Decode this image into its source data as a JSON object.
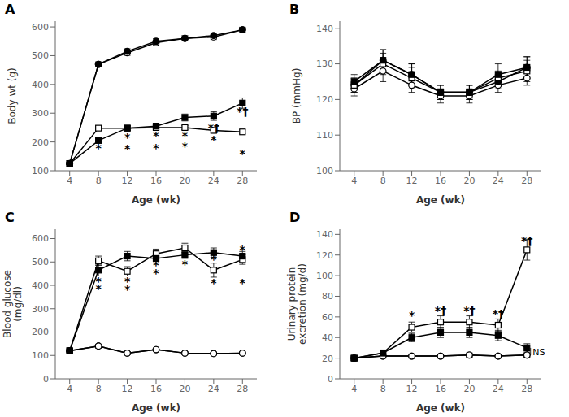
{
  "chart_data": [
    {
      "type": "line",
      "title": "A",
      "x_label": "Age (wk)",
      "y_label": "Body wt (g)",
      "x": [
        4,
        8,
        12,
        16,
        20,
        24,
        28
      ],
      "xlim": [
        2,
        30
      ],
      "xticks": [
        4,
        8,
        12,
        16,
        20,
        24,
        28
      ],
      "ylim": [
        100,
        620
      ],
      "yticks": [
        100,
        200,
        300,
        400,
        500,
        600
      ],
      "grid": false,
      "series": [
        {
          "color": "black",
          "marker": "open_circle",
          "values": [
            125,
            470,
            510,
            545,
            560,
            565,
            590
          ],
          "yerr": [
            3,
            8,
            9,
            9,
            9,
            9,
            9
          ]
        },
        {
          "color": "black",
          "marker": "circle",
          "values": [
            125,
            470,
            515,
            550,
            560,
            570,
            590
          ],
          "yerr": [
            3,
            8,
            9,
            9,
            9,
            9,
            9
          ]
        },
        {
          "color": "black",
          "marker": "open_square",
          "values": [
            125,
            248,
            248,
            250,
            250,
            240,
            235
          ],
          "yerr": [
            3,
            7,
            7,
            7,
            7,
            7,
            7
          ]
        },
        {
          "color": "black",
          "marker": "square",
          "values": [
            125,
            205,
            248,
            255,
            285,
            290,
            335
          ],
          "yerr": [
            3,
            7,
            8,
            10,
            12,
            15,
            18
          ]
        }
      ],
      "annotations": [
        {
          "x": 8,
          "y": 182,
          "text": "*"
        },
        {
          "x": 12,
          "y": 220,
          "text": "*"
        },
        {
          "x": 12,
          "y": 178,
          "text": "*"
        },
        {
          "x": 16,
          "y": 225,
          "text": "*"
        },
        {
          "x": 16,
          "y": 183,
          "text": "*"
        },
        {
          "x": 20,
          "y": 225,
          "text": "*"
        },
        {
          "x": 20,
          "y": 188,
          "text": "*"
        },
        {
          "x": 24,
          "y": 252,
          "text": "*†"
        },
        {
          "x": 24,
          "y": 210,
          "text": "*"
        },
        {
          "x": 28,
          "y": 310,
          "text": "*†"
        },
        {
          "x": 28,
          "y": 162,
          "text": "*"
        }
      ]
    },
    {
      "type": "line",
      "title": "B",
      "x_label": "Age (wk)",
      "y_label": "BP (mmHg)",
      "x": [
        4,
        8,
        12,
        16,
        20,
        24,
        28
      ],
      "xlim": [
        2,
        30
      ],
      "xticks": [
        4,
        8,
        12,
        16,
        20,
        24,
        28
      ],
      "ylim": [
        100,
        142
      ],
      "yticks": [
        100,
        110,
        120,
        130,
        140
      ],
      "grid": false,
      "series": [
        {
          "color": "black",
          "marker": "open_circle",
          "values": [
            123,
            128,
            124,
            121,
            121,
            124,
            126
          ],
          "yerr": [
            2,
            3,
            2,
            2,
            2,
            2,
            2
          ]
        },
        {
          "color": "black",
          "marker": "circle",
          "values": [
            124,
            131,
            127,
            122,
            122,
            125,
            129
          ],
          "yerr": [
            2,
            3,
            3,
            2,
            2,
            2,
            3
          ]
        },
        {
          "color": "black",
          "marker": "open_square",
          "values": [
            124,
            130,
            126,
            122,
            122,
            126,
            128
          ],
          "yerr": [
            2,
            3,
            3,
            2,
            2,
            2,
            3
          ]
        },
        {
          "color": "black",
          "marker": "square",
          "values": [
            125,
            131,
            127,
            122,
            122,
            127,
            129
          ],
          "yerr": [
            2,
            3,
            3,
            2,
            2,
            3,
            3
          ]
        }
      ]
    },
    {
      "type": "line",
      "title": "C",
      "x_label": "Age (wk)",
      "y_label": "Blood glucose\n(mg/dl)",
      "x": [
        4,
        8,
        12,
        16,
        20,
        24,
        28
      ],
      "xlim": [
        2,
        30
      ],
      "xticks": [
        4,
        8,
        12,
        16,
        20,
        24,
        28
      ],
      "ylim": [
        0,
        640
      ],
      "yticks": [
        0,
        100,
        200,
        300,
        400,
        500,
        600
      ],
      "grid": false,
      "series": [
        {
          "color": "black",
          "marker": "circle",
          "values": [
            120,
            140,
            110,
            125,
            110,
            108,
            110
          ],
          "yerr": [
            5,
            8,
            5,
            5,
            5,
            5,
            5
          ]
        },
        {
          "color": "black",
          "marker": "open_circle",
          "values": [
            120,
            140,
            110,
            125,
            110,
            108,
            110
          ],
          "yerr": [
            5,
            8,
            5,
            5,
            5,
            5,
            5
          ]
        },
        {
          "color": "black",
          "marker": "open_square",
          "values": [
            120,
            505,
            460,
            535,
            560,
            465,
            510
          ],
          "yerr": [
            5,
            20,
            20,
            20,
            20,
            30,
            20
          ]
        },
        {
          "color": "black",
          "marker": "square",
          "values": [
            120,
            465,
            525,
            515,
            530,
            540,
            525
          ],
          "yerr": [
            5,
            25,
            20,
            20,
            15,
            20,
            20
          ]
        }
      ],
      "annotations": [
        {
          "x": 8,
          "y": 420,
          "text": "*"
        },
        {
          "x": 8,
          "y": 390,
          "text": "*"
        },
        {
          "x": 12,
          "y": 420,
          "text": "*"
        },
        {
          "x": 12,
          "y": 385,
          "text": "*"
        },
        {
          "x": 16,
          "y": 490,
          "text": "*"
        },
        {
          "x": 16,
          "y": 455,
          "text": "*"
        },
        {
          "x": 20,
          "y": 535,
          "text": "*"
        },
        {
          "x": 20,
          "y": 495,
          "text": "*"
        },
        {
          "x": 24,
          "y": 515,
          "text": "*"
        },
        {
          "x": 24,
          "y": 415,
          "text": "*"
        },
        {
          "x": 28,
          "y": 555,
          "text": "*"
        },
        {
          "x": 28,
          "y": 415,
          "text": "*"
        }
      ]
    },
    {
      "type": "line",
      "title": "D",
      "x_label": "Age (wk)",
      "y_label": "Urinary protein\nexcretion (mg/d)",
      "x": [
        4,
        8,
        12,
        16,
        20,
        24,
        28
      ],
      "xlim": [
        2,
        30
      ],
      "xticks": [
        4,
        8,
        12,
        16,
        20,
        24,
        28
      ],
      "ylim": [
        0,
        145
      ],
      "yticks": [
        0,
        20,
        40,
        60,
        80,
        100,
        120,
        140
      ],
      "grid": false,
      "series": [
        {
          "color": "black",
          "marker": "circle",
          "values": [
            20,
            22,
            22,
            22,
            23,
            22,
            23
          ],
          "yerr": [
            2,
            2,
            2,
            2,
            2,
            2,
            2
          ]
        },
        {
          "color": "black",
          "marker": "open_circle",
          "values": [
            20,
            22,
            22,
            22,
            23,
            22,
            23
          ],
          "yerr": [
            2,
            2,
            2,
            2,
            2,
            2,
            2
          ]
        },
        {
          "color": "black",
          "marker": "open_square",
          "values": [
            20,
            25,
            50,
            55,
            55,
            52,
            125
          ],
          "yerr": [
            2,
            3,
            5,
            6,
            6,
            6,
            10
          ]
        },
        {
          "color": "black",
          "marker": "square",
          "values": [
            20,
            25,
            40,
            45,
            45,
            42,
            30
          ],
          "yerr": [
            2,
            3,
            4,
            5,
            5,
            5,
            4
          ]
        }
      ],
      "annotations": [
        {
          "x": 12,
          "y": 62,
          "text": "*"
        },
        {
          "x": 16,
          "y": 67,
          "text": "*†"
        },
        {
          "x": 20,
          "y": 67,
          "text": "*†"
        },
        {
          "x": 24,
          "y": 64,
          "text": "*†"
        },
        {
          "x": 28,
          "y": 135,
          "text": "*†"
        }
      ],
      "notes": [
        {
          "x": 28.8,
          "y": 26,
          "text": "NS"
        }
      ],
      "bracket_lines": [
        {
          "x": 28.5,
          "y_from": 23,
          "y_to": 30
        }
      ]
    }
  ]
}
